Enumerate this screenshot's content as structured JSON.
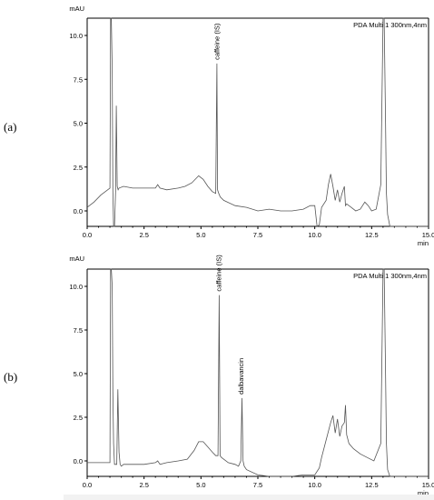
{
  "figure": {
    "panels": [
      {
        "label": "(a)"
      },
      {
        "label": "(b)"
      }
    ]
  },
  "chart_data": [
    {
      "type": "line",
      "panel": "(a)",
      "ylabel": "mAU",
      "xlabel": "min",
      "legend_text": "PDA Multi 1 300nm,4nm",
      "xlim": [
        0,
        15
      ],
      "ylim": [
        -1,
        11
      ],
      "x_ticks": [
        "0.0",
        "2.5",
        "5.0",
        "7.5",
        "10.0",
        "12.5",
        "15.0"
      ],
      "y_ticks": [
        "0.0",
        "2.5",
        "5.0",
        "7.5",
        "10.0"
      ],
      "annotations": [
        {
          "text": "caffeine (IS)",
          "x": 5.72,
          "y": 8.4
        }
      ],
      "series": [
        {
          "x": [
            0.0,
            0.3,
            0.6,
            0.9,
            1.0,
            1.03,
            1.06,
            1.1,
            1.13,
            1.16,
            1.2,
            1.25,
            1.28,
            1.32,
            1.36,
            1.4,
            1.6,
            2.0,
            2.5,
            3.0,
            3.1,
            3.2,
            3.5,
            4.0,
            4.3,
            4.6,
            4.9,
            5.1,
            5.3,
            5.5,
            5.65,
            5.7,
            5.73,
            5.78,
            5.85,
            6.0,
            6.5,
            7.0,
            7.5,
            8.0,
            8.5,
            9.0,
            9.5,
            9.8,
            10.0,
            10.1,
            10.2,
            10.3,
            10.5,
            10.6,
            10.7,
            10.8,
            10.9,
            11.0,
            11.1,
            11.2,
            11.3,
            11.35,
            11.4,
            11.6,
            11.8,
            12.0,
            12.2,
            12.35,
            12.5,
            12.7,
            12.9,
            13.0,
            13.05,
            13.1,
            13.15,
            13.2,
            13.3,
            13.4,
            13.6,
            14.0,
            15.0
          ],
          "y": [
            0.2,
            0.5,
            0.9,
            1.2,
            1.3,
            11.0,
            11.0,
            8.0,
            1.2,
            -1.0,
            -1.0,
            1.1,
            6.0,
            1.4,
            1.2,
            1.3,
            1.4,
            1.3,
            1.3,
            1.3,
            1.5,
            1.3,
            1.2,
            1.3,
            1.4,
            1.6,
            2.0,
            1.8,
            1.4,
            1.1,
            1.0,
            8.4,
            1.2,
            1.0,
            0.8,
            0.6,
            0.3,
            0.2,
            0.0,
            0.1,
            0.0,
            0.0,
            0.1,
            0.3,
            0.3,
            -1.0,
            -0.8,
            0.2,
            0.6,
            1.5,
            2.1,
            1.4,
            0.6,
            1.2,
            0.5,
            1.0,
            1.4,
            0.3,
            0.4,
            0.2,
            0.0,
            0.1,
            0.5,
            0.3,
            0.0,
            0.1,
            1.5,
            11.0,
            11.0,
            6.0,
            1.0,
            -0.2,
            -1.0,
            -1.0,
            -1.0,
            -1.0,
            -1.0
          ]
        }
      ]
    },
    {
      "type": "line",
      "panel": "(b)",
      "ylabel": "mAU",
      "xlabel": "min",
      "legend_text": "PDA Multi 1 300nm,4nm",
      "xlim": [
        0,
        15
      ],
      "ylim": [
        -1,
        11
      ],
      "x_ticks": [
        "0.0",
        "2.5",
        "5.0",
        "7.5",
        "10.0",
        "12.5",
        "15.0"
      ],
      "y_ticks": [
        "0.0",
        "2.5",
        "5.0",
        "7.5",
        "10.0"
      ],
      "annotations": [
        {
          "text": "caffeine (IS)",
          "x": 5.8,
          "y": 9.5
        },
        {
          "text": "dalbavancin",
          "x": 6.78,
          "y": 3.6
        }
      ],
      "series": [
        {
          "x": [
            0.0,
            0.3,
            0.6,
            0.9,
            1.0,
            1.03,
            1.06,
            1.1,
            1.13,
            1.16,
            1.2,
            1.3,
            1.35,
            1.4,
            1.45,
            1.5,
            1.6,
            2.0,
            2.5,
            3.0,
            3.1,
            3.2,
            3.5,
            4.0,
            4.4,
            4.7,
            4.9,
            5.1,
            5.3,
            5.5,
            5.65,
            5.75,
            5.8,
            5.84,
            5.9,
            6.2,
            6.5,
            6.65,
            6.75,
            6.8,
            6.85,
            6.9,
            7.0,
            7.5,
            8.0,
            8.5,
            9.0,
            9.5,
            9.9,
            10.0,
            10.2,
            10.3,
            10.5,
            10.7,
            10.8,
            10.9,
            11.0,
            11.1,
            11.2,
            11.3,
            11.35,
            11.4,
            11.5,
            11.7,
            12.0,
            12.3,
            12.6,
            12.9,
            13.0,
            13.05,
            13.1,
            13.15,
            13.2,
            13.3,
            13.4,
            13.6,
            14.0,
            15.0
          ],
          "y": [
            -0.1,
            -0.1,
            -0.1,
            -0.1,
            -0.1,
            11.0,
            11.0,
            10.0,
            4.0,
            1.0,
            -0.2,
            -0.2,
            4.1,
            0.5,
            -0.2,
            -0.3,
            -0.2,
            -0.2,
            -0.2,
            -0.1,
            0.0,
            -0.2,
            -0.1,
            0.0,
            0.1,
            0.6,
            1.1,
            1.1,
            0.8,
            0.5,
            0.3,
            0.3,
            9.5,
            0.3,
            0.2,
            -0.1,
            -0.2,
            -0.3,
            0.0,
            3.6,
            0.0,
            -0.3,
            -0.5,
            -0.8,
            -0.9,
            -0.9,
            -1.0,
            -0.8,
            -0.8,
            -0.8,
            -0.4,
            0.2,
            1.2,
            2.2,
            2.6,
            1.6,
            2.4,
            1.4,
            2.0,
            2.2,
            3.2,
            1.5,
            1.0,
            0.7,
            0.4,
            0.2,
            0.0,
            1.0,
            11.0,
            11.0,
            6.0,
            1.0,
            -0.5,
            -1.0,
            -1.0,
            -1.0,
            -1.0,
            -1.0
          ]
        }
      ]
    }
  ]
}
